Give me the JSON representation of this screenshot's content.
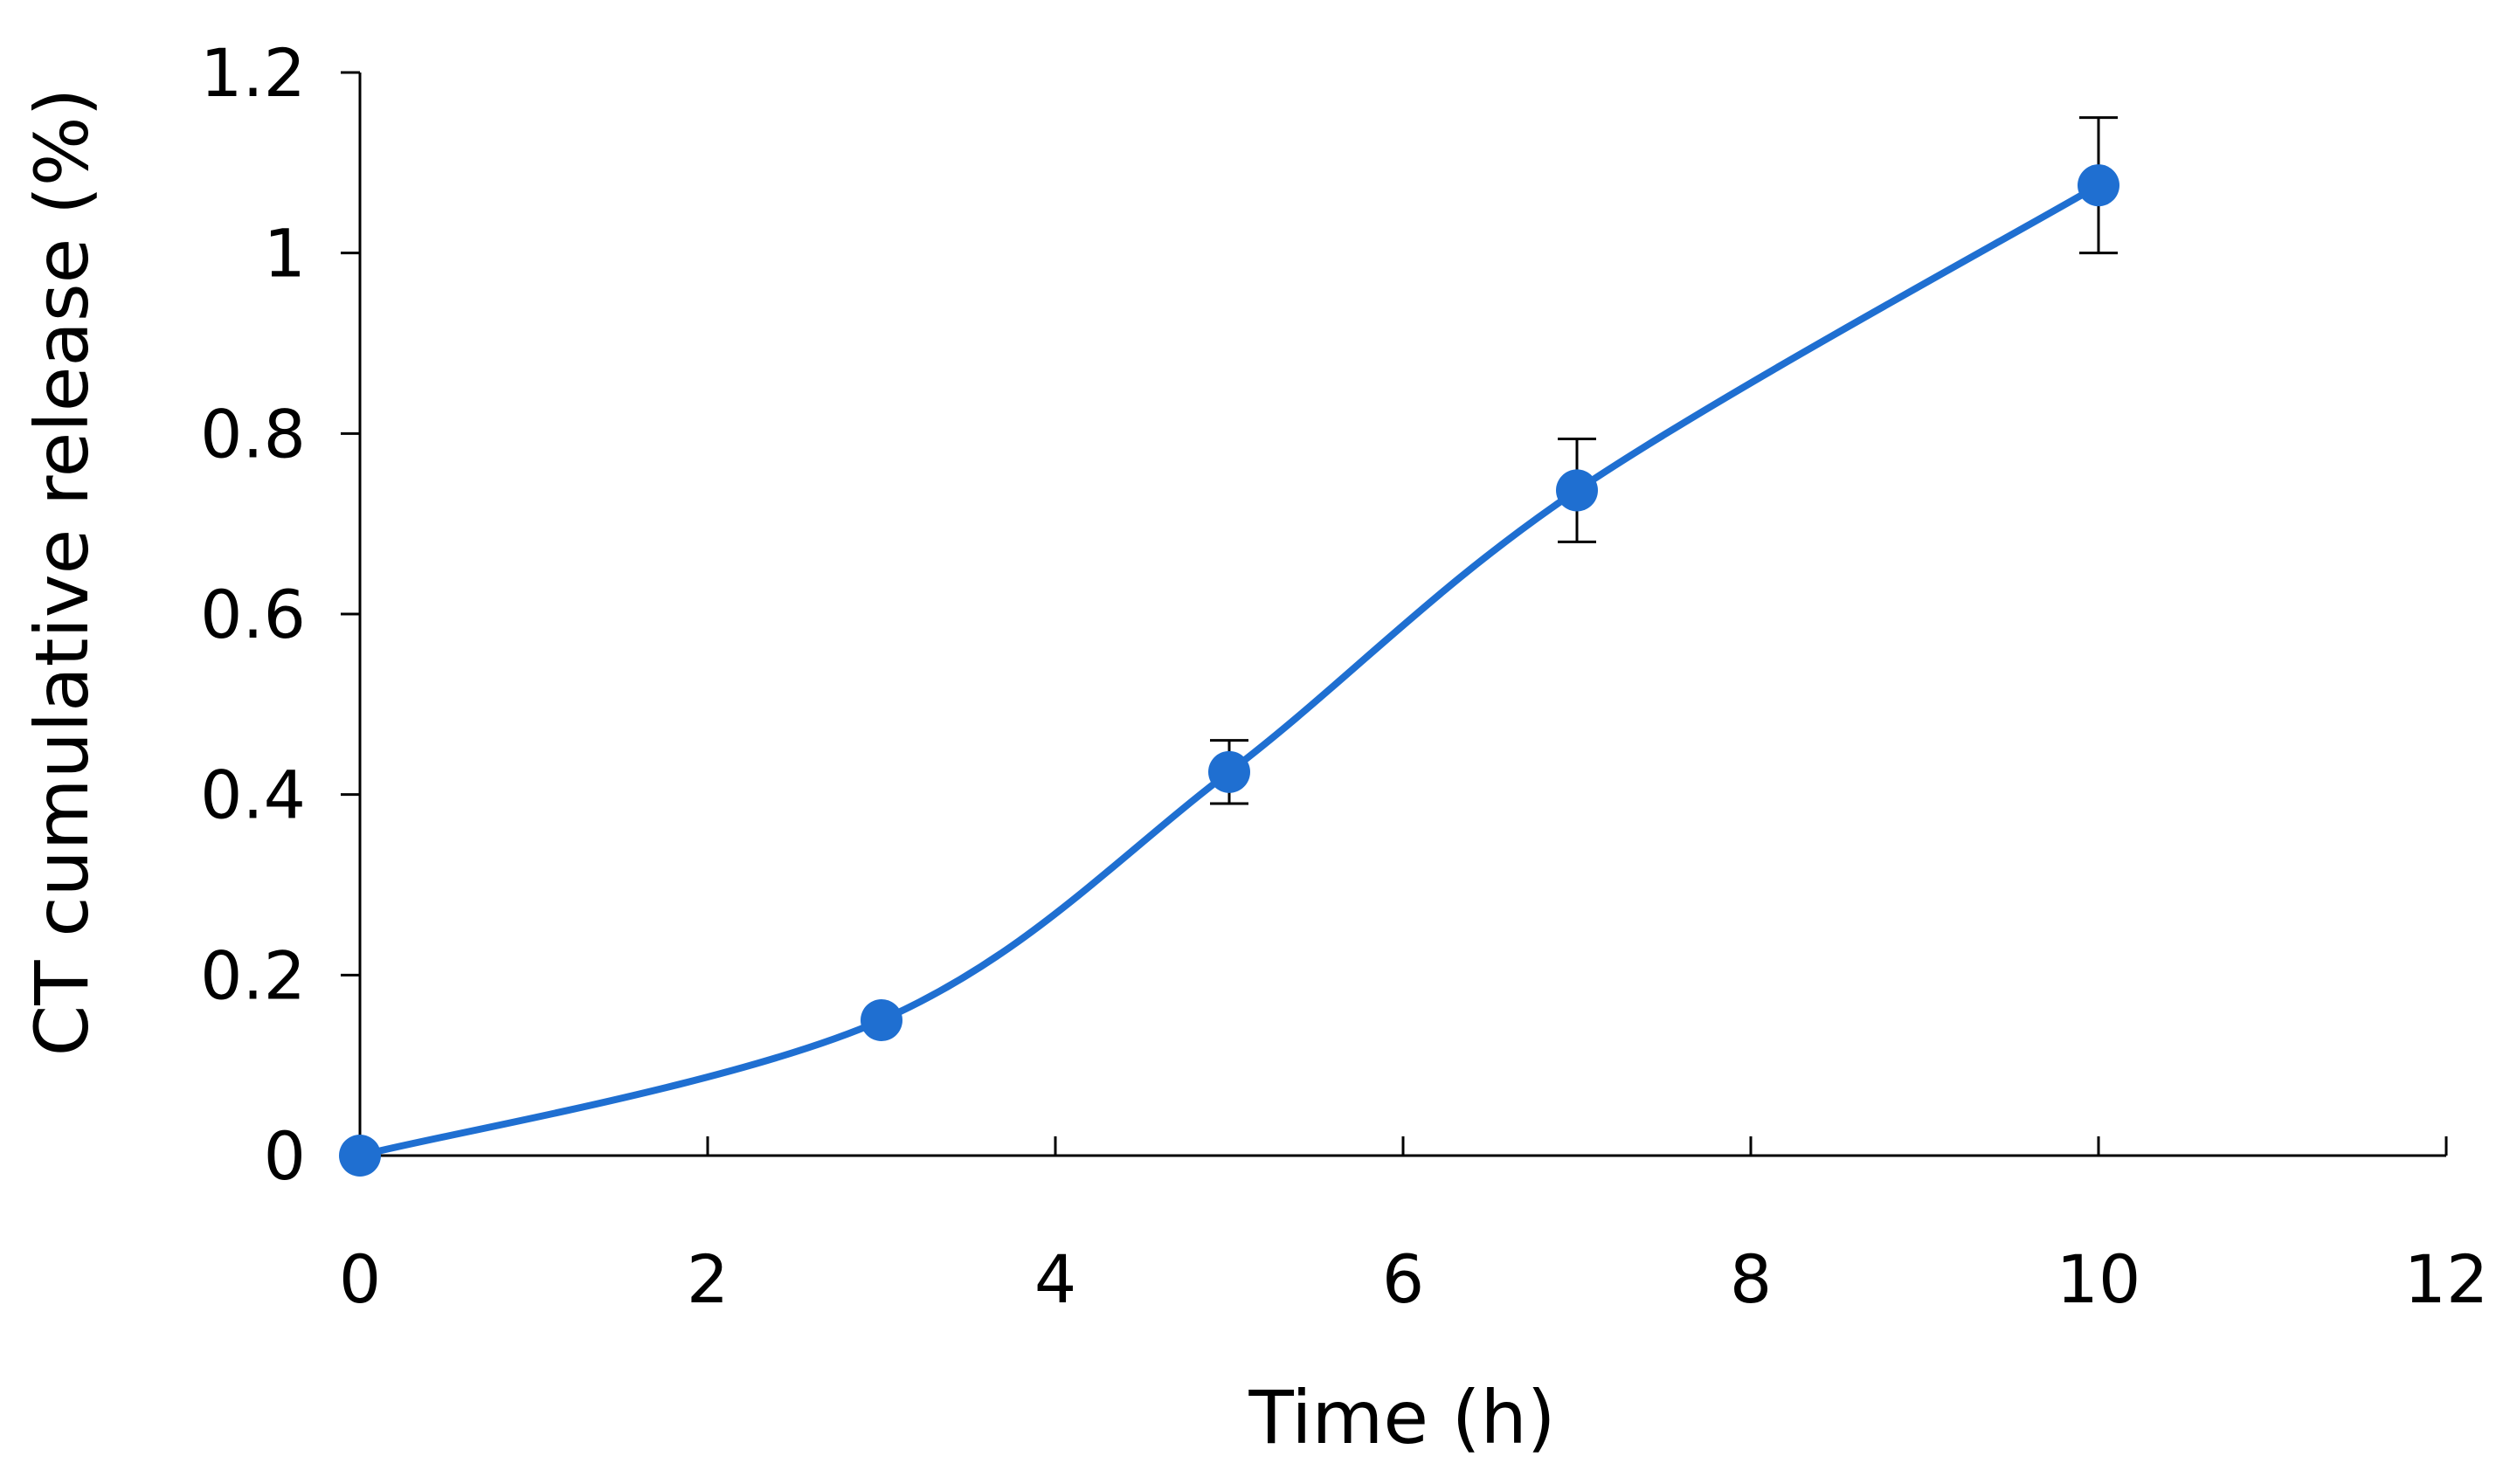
{
  "chart_data": {
    "type": "line",
    "title": "",
    "xlabel": "Time (h)",
    "ylabel": "CT cumulative release (%)",
    "xlim": [
      0,
      12
    ],
    "ylim": [
      0,
      1.2
    ],
    "x_ticks": [
      "0",
      "2",
      "4",
      "6",
      "8",
      "10",
      "12"
    ],
    "y_ticks": [
      "0",
      "0.2",
      "0.4",
      "0.6",
      "0.8",
      "1",
      "1.2"
    ],
    "grid": false,
    "smooth": true,
    "series": [
      {
        "x": [
          0,
          3,
          5,
          7,
          10
        ],
        "y": [
          0,
          0.15,
          0.425,
          0.737,
          1.075
        ],
        "error": [
          0,
          0,
          0.035,
          0.057,
          0.075
        ],
        "color": "#1f6fd1"
      }
    ]
  }
}
